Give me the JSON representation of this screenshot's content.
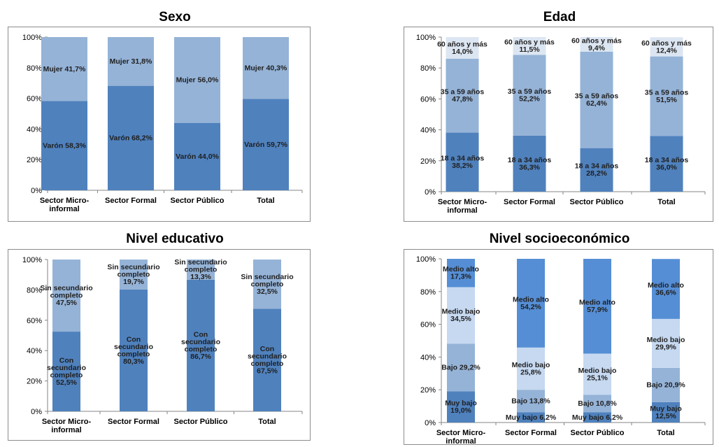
{
  "chart_data": [
    {
      "type": "bar",
      "stacked": true,
      "title": "Sexo",
      "categories": [
        "Sector Micro-\ninformal",
        "Sector Formal",
        "Sector Público",
        "Total"
      ],
      "ylim": [
        0,
        100
      ],
      "yticks": [
        "0%",
        "20%",
        "40%",
        "60%",
        "80%",
        "100%"
      ],
      "grid": false,
      "legend": "none",
      "series": [
        {
          "name": "Varón",
          "values": [
            58.3,
            68.2,
            44.0,
            59.7
          ],
          "color": "#4f81bd",
          "labels": [
            "Varón 58,3%",
            "Varón 68,2%",
            "Varón 44,0%",
            "Varón 59,7%"
          ]
        },
        {
          "name": "Mujer",
          "values": [
            41.7,
            31.8,
            56.0,
            40.3
          ],
          "color": "#95b3d7",
          "labels": [
            "Mujer 41,7%",
            "Mujer 31,8%",
            "Mujer 56,0%",
            "Mujer 40,3%"
          ]
        }
      ]
    },
    {
      "type": "bar",
      "stacked": true,
      "title": "Edad",
      "categories": [
        "Sector Micro-\ninformal",
        "Sector Formal",
        "Sector Público",
        "Total"
      ],
      "ylim": [
        0,
        100
      ],
      "yticks": [
        "0%",
        "20%",
        "40%",
        "60%",
        "80%",
        "100%"
      ],
      "grid": false,
      "legend": "none",
      "series": [
        {
          "name": "18 a 34 años",
          "values": [
            38.2,
            36.3,
            28.2,
            36.0
          ],
          "color": "#4f81bd",
          "labels": [
            "18 a 34 años\n38,2%",
            "18 a 34 años\n36,3%",
            "18 a 34 años\n28,2%",
            "18 a 34 años\n36,0%"
          ]
        },
        {
          "name": "35 a 59 años",
          "values": [
            47.8,
            52.2,
            62.4,
            51.5
          ],
          "color": "#95b3d7",
          "labels": [
            "35 a 59 años\n47,8%",
            "35 a 59 años\n52,2%",
            "35 a 59 años\n62,4%",
            "35 a 59 años\n51,5%"
          ]
        },
        {
          "name": "60 años y más",
          "values": [
            14.0,
            11.5,
            9.4,
            12.4
          ],
          "color": "#dce6f2",
          "labels": [
            "60 años y más\n14,0%",
            "60 años y más\n11,5%",
            "60 años y más\n9,4%",
            "60 años y más\n12,4%"
          ]
        }
      ]
    },
    {
      "type": "bar",
      "stacked": true,
      "title": "Nivel educativo",
      "categories": [
        "Sector Micro-\ninformal",
        "Sector Formal",
        "Sector Público",
        "Total"
      ],
      "ylim": [
        0,
        100
      ],
      "yticks": [
        "0%",
        "20%",
        "40%",
        "60%",
        "80%",
        "100%"
      ],
      "grid": false,
      "legend": "none",
      "series": [
        {
          "name": "Con secundario completo",
          "values": [
            52.5,
            80.3,
            86.7,
            67.5
          ],
          "color": "#4f81bd",
          "labels": [
            "Con\nsecundario\ncompleto\n52,5%",
            "Con\nsecundario\ncompleto\n80,3%",
            "Con\nsecundario\ncompleto\n86,7%",
            "Con\nsecundario\ncompleto\n67,5%"
          ]
        },
        {
          "name": "Sin secundario completo",
          "values": [
            47.5,
            19.7,
            13.3,
            32.5
          ],
          "color": "#95b3d7",
          "labels": [
            "Sin secundario\ncompleto\n47,5%",
            "Sin secundario\ncompleto\n19,7%",
            "Sin secundario\ncompleto\n13,3%",
            "Sin secundario\ncompleto\n32,5%"
          ]
        }
      ]
    },
    {
      "type": "bar",
      "stacked": true,
      "title": "Nivel socioeconómico",
      "categories": [
        "Sector Micro-\ninformal",
        "Sector Formal",
        "Sector Público",
        "Total"
      ],
      "ylim": [
        0,
        100
      ],
      "yticks": [
        "0%",
        "20%",
        "40%",
        "60%",
        "80%",
        "100%"
      ],
      "grid": false,
      "legend": "none",
      "series": [
        {
          "name": "Muy bajo",
          "values": [
            19.0,
            6.2,
            6.2,
            12.5
          ],
          "color": "#4f81bd",
          "labels": [
            "Muy bajo\n19,0%",
            "Muy bajo 6,2%",
            "Muy bajo 6,2%",
            "Muy bajo\n12,5%"
          ]
        },
        {
          "name": "Bajo",
          "values": [
            29.2,
            13.8,
            10.8,
            20.9
          ],
          "color": "#95b3d7",
          "labels": [
            "Bajo 29,2%",
            "Bajo 13,8%",
            "Bajo 10,8%",
            "Bajo 20,9%"
          ]
        },
        {
          "name": "Medio bajo",
          "values": [
            34.5,
            25.8,
            25.1,
            29.9
          ],
          "color": "#c6d9f1",
          "labels": [
            "Medio bajo\n34,5%",
            "Medio bajo\n25,8%",
            "Medio bajo\n25,1%",
            "Medio bajo\n29,9%"
          ]
        },
        {
          "name": "Medio alto",
          "values": [
            17.3,
            54.2,
            57.9,
            36.6
          ],
          "color": "#558ed5",
          "labels": [
            "Medio alto\n17,3%",
            "Medio alto\n54,2%",
            "Medio alto\n57,9%",
            "Medio alto\n36,6%"
          ]
        }
      ]
    }
  ]
}
